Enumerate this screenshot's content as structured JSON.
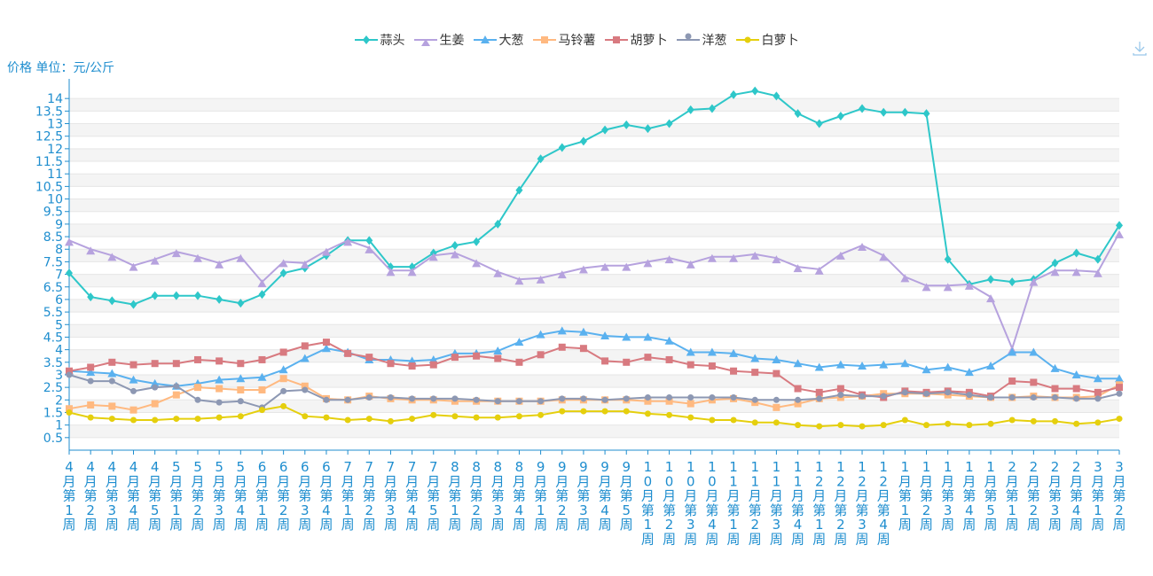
{
  "y_axis_title": "价格 单位：元/公斤",
  "download_icon": "download-icon",
  "chart_data": {
    "type": "line",
    "ylabel": "价格 单位：元/公斤",
    "ylim": [
      0,
      14.5
    ],
    "yticks": [
      "0.5",
      "1",
      "1.5",
      "2",
      "2.5",
      "3",
      "3.5",
      "4",
      "4.5",
      "5",
      "5.5",
      "6",
      "6.5",
      "7",
      "7.5",
      "8",
      "8.5",
      "9",
      "9.5",
      "10",
      "10.5",
      "11",
      "11.5",
      "12",
      "12.5",
      "13",
      "13.5",
      "14"
    ],
    "legend_position": "top-center",
    "grid": true,
    "categories": [
      "4月第1周",
      "4月第2周",
      "4月第3周",
      "4月第4周",
      "4月第5周",
      "5月第1周",
      "5月第2周",
      "5月第3周",
      "5月第4周",
      "6月第1周",
      "6月第2周",
      "6月第3周",
      "6月第4周",
      "7月第1周",
      "7月第2周",
      "7月第3周",
      "7月第4周",
      "7月第5周",
      "8月第1周",
      "8月第2周",
      "8月第3周",
      "8月第4周",
      "9月第1周",
      "9月第2周",
      "9月第3周",
      "9月第4周",
      "9月第5周",
      "10月第1周",
      "10月第2周",
      "10月第3周",
      "10月第4周",
      "11月第1周",
      "11月第2周",
      "11月第3周",
      "11月第4周",
      "12月第1周",
      "12月第2周",
      "12月第3周",
      "12月第4周",
      "1月第1周",
      "1月第2周",
      "1月第3周",
      "1月第4周",
      "1月第5周",
      "2月第1周",
      "2月第2周",
      "2月第3周",
      "2月第4周",
      "3月第1周",
      "3月第2周"
    ],
    "series": [
      {
        "name": "蒜头",
        "color": "#2ec7c9",
        "marker": "diamond",
        "values": [
          7.05,
          6.1,
          5.95,
          5.8,
          6.15,
          6.15,
          6.15,
          6.0,
          5.85,
          6.2,
          7.05,
          7.25,
          7.75,
          8.35,
          8.35,
          7.3,
          7.3,
          7.85,
          8.15,
          8.3,
          9.0,
          10.35,
          11.6,
          12.05,
          12.3,
          12.75,
          12.95,
          12.8,
          13.0,
          13.55,
          13.6,
          14.15,
          14.3,
          14.1,
          13.4,
          13.0,
          13.3,
          13.6,
          13.45,
          13.45,
          13.4,
          7.6,
          6.6,
          6.8,
          6.7,
          6.8,
          7.45,
          7.85,
          7.6,
          8.95
        ]
      },
      {
        "name": "生姜",
        "color": "#b6a2de",
        "marker": "triangle-down",
        "values": [
          8.35,
          8.0,
          7.75,
          7.35,
          7.6,
          7.9,
          7.7,
          7.45,
          7.7,
          6.7,
          7.5,
          7.45,
          7.95,
          8.35,
          8.05,
          7.15,
          7.15,
          7.75,
          7.85,
          7.5,
          7.1,
          6.8,
          6.85,
          7.05,
          7.25,
          7.35,
          7.35,
          7.5,
          7.65,
          7.45,
          7.7,
          7.7,
          7.8,
          7.65,
          7.3,
          7.2,
          7.8,
          8.15,
          7.75,
          6.9,
          6.55,
          6.55,
          6.6,
          6.1,
          4.05,
          6.75,
          7.15,
          7.15,
          7.1,
          8.65
        ]
      },
      {
        "name": "大葱",
        "color": "#5ab1ef",
        "marker": "triangle",
        "values": [
          3.15,
          3.1,
          3.05,
          2.8,
          2.65,
          2.55,
          2.65,
          2.8,
          2.85,
          2.9,
          3.2,
          3.65,
          4.05,
          3.9,
          3.6,
          3.6,
          3.55,
          3.6,
          3.85,
          3.85,
          3.95,
          4.3,
          4.6,
          4.75,
          4.7,
          4.55,
          4.5,
          4.5,
          4.35,
          3.9,
          3.9,
          3.85,
          3.65,
          3.6,
          3.45,
          3.3,
          3.4,
          3.35,
          3.4,
          3.45,
          3.2,
          3.3,
          3.1,
          3.35,
          3.9,
          3.9,
          3.25,
          3.0,
          2.85,
          2.85
        ]
      },
      {
        "name": "马铃薯",
        "color": "#ffb980",
        "marker": "square",
        "values": [
          1.65,
          1.8,
          1.75,
          1.6,
          1.85,
          2.2,
          2.5,
          2.45,
          2.4,
          2.4,
          2.85,
          2.55,
          2.05,
          2.0,
          2.15,
          2.05,
          2.0,
          2.0,
          1.95,
          1.95,
          1.95,
          1.95,
          1.95,
          2.0,
          2.0,
          2.0,
          2.0,
          1.95,
          1.95,
          1.85,
          2.0,
          2.05,
          1.9,
          1.7,
          1.85,
          2.05,
          2.1,
          2.15,
          2.25,
          2.25,
          2.25,
          2.2,
          2.15,
          2.1,
          2.1,
          2.15,
          2.1,
          2.1,
          2.15,
          2.6
        ]
      },
      {
        "name": "胡萝卜",
        "color": "#d87a80",
        "marker": "square",
        "values": [
          3.15,
          3.3,
          3.5,
          3.4,
          3.45,
          3.45,
          3.6,
          3.55,
          3.45,
          3.6,
          3.9,
          4.15,
          4.3,
          3.85,
          3.7,
          3.45,
          3.35,
          3.4,
          3.7,
          3.75,
          3.65,
          3.5,
          3.8,
          4.1,
          4.05,
          3.55,
          3.5,
          3.7,
          3.6,
          3.4,
          3.35,
          3.15,
          3.1,
          3.05,
          2.45,
          2.3,
          2.45,
          2.2,
          2.1,
          2.35,
          2.3,
          2.35,
          2.3,
          2.15,
          2.75,
          2.7,
          2.45,
          2.45,
          2.3,
          2.5
        ]
      },
      {
        "name": "洋葱",
        "color": "#8d98b3",
        "marker": "circle",
        "values": [
          3.0,
          2.75,
          2.75,
          2.35,
          2.5,
          2.55,
          2.0,
          1.9,
          1.95,
          1.7,
          2.35,
          2.4,
          2.0,
          2.0,
          2.1,
          2.1,
          2.05,
          2.05,
          2.05,
          2.0,
          1.95,
          1.95,
          1.95,
          2.05,
          2.05,
          2.0,
          2.05,
          2.1,
          2.1,
          2.1,
          2.1,
          2.1,
          2.0,
          2.0,
          2.0,
          2.05,
          2.2,
          2.15,
          2.15,
          2.3,
          2.25,
          2.3,
          2.2,
          2.1,
          2.1,
          2.1,
          2.1,
          2.05,
          2.05,
          2.25
        ]
      },
      {
        "name": "白萝卜",
        "color": "#e5cf0d",
        "marker": "circle",
        "values": [
          1.5,
          1.3,
          1.25,
          1.2,
          1.2,
          1.25,
          1.25,
          1.3,
          1.35,
          1.6,
          1.75,
          1.35,
          1.3,
          1.2,
          1.25,
          1.15,
          1.25,
          1.4,
          1.35,
          1.3,
          1.3,
          1.35,
          1.4,
          1.55,
          1.55,
          1.55,
          1.55,
          1.45,
          1.4,
          1.3,
          1.2,
          1.2,
          1.1,
          1.1,
          1.0,
          0.95,
          1.0,
          0.95,
          1.0,
          1.2,
          1.0,
          1.05,
          1.0,
          1.05,
          1.2,
          1.15,
          1.15,
          1.05,
          1.1,
          1.25
        ]
      }
    ]
  }
}
